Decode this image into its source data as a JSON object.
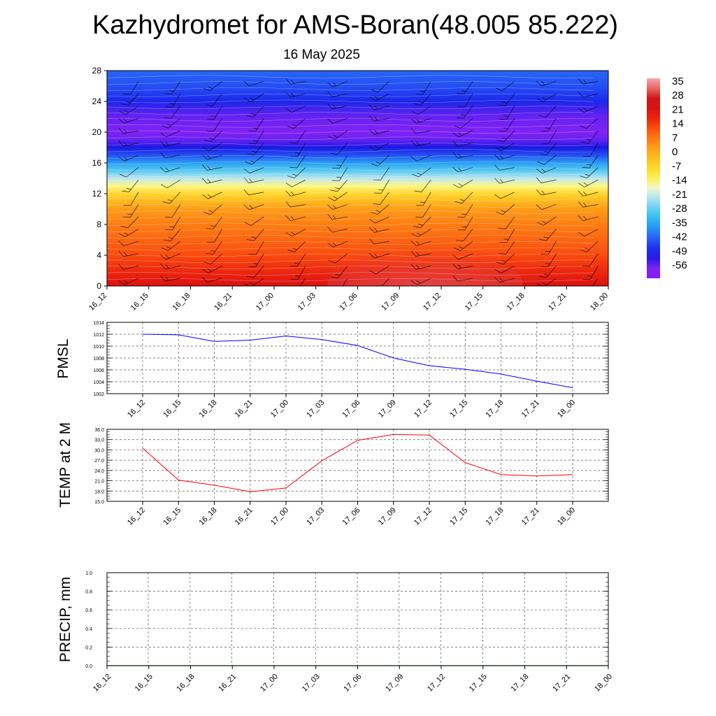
{
  "page": {
    "title": "Kazhydromet for AMS-Boran(48.005 85.222)",
    "subtitle": "16 May 2025"
  },
  "time_labels": [
    "16_12",
    "16_15",
    "16_18",
    "16_21",
    "17_00",
    "17_03",
    "17_06",
    "17_09",
    "17_12",
    "17_15",
    "17_18",
    "17_21",
    "18_00"
  ],
  "chart_data": [
    {
      "type": "heatmap",
      "title": "Kazhydromet for AMS-Boran(48.005 85.222)",
      "subtitle": "16 May 2025",
      "x": [
        "16_12",
        "16_15",
        "16_18",
        "16_21",
        "17_00",
        "17_03",
        "17_06",
        "17_09",
        "17_12",
        "17_15",
        "17_18",
        "17_21",
        "18_00"
      ],
      "ylim": [
        0,
        28
      ],
      "yticks": [
        0,
        4,
        8,
        12,
        16,
        20,
        24,
        28
      ],
      "colorbar": {
        "labels": [
          "35",
          "28",
          "21",
          "14",
          "7",
          "0",
          "-7",
          "-14",
          "-21",
          "-28",
          "-35",
          "-42",
          "-49",
          "-56"
        ],
        "range": [
          -60,
          38
        ]
      },
      "temperature_profile": {
        "levels": [
          0,
          2,
          4,
          6,
          8,
          10,
          11,
          12,
          13,
          14,
          15,
          16,
          17,
          18,
          19,
          20,
          22,
          24,
          25,
          26,
          28
        ],
        "values": [
          22,
          18,
          14,
          11,
          8,
          4,
          0,
          -6,
          -13,
          -20,
          -27,
          -34,
          -42,
          -49,
          -54,
          -56,
          -54,
          -47,
          -44,
          -42,
          -40
        ]
      },
      "surface_warm_anomaly": {
        "x": [
          "17_06",
          "17_09",
          "17_12",
          "17_15"
        ],
        "peak": "17_12",
        "max_value": 34
      },
      "wind_barbs": true
    },
    {
      "type": "line",
      "ylabel": "PMSL",
      "x": [
        "16_12",
        "16_15",
        "16_18",
        "16_21",
        "17_00",
        "17_03",
        "17_06",
        "17_09",
        "17_12",
        "17_15",
        "17_18",
        "17_21",
        "18_00"
      ],
      "series": [
        {
          "values": [
            1012.0,
            1011.9,
            1010.8,
            1011.0,
            1011.7,
            1011.1,
            1010.1,
            1008.0,
            1006.7,
            1006.1,
            1005.3,
            1004.1,
            1003.0
          ]
        }
      ],
      "ylim": [
        1002,
        1014
      ],
      "yticks": [
        "1002",
        "1004",
        "1006",
        "1008",
        "1010",
        "1012",
        "1014"
      ],
      "color": "#0000ff",
      "grid": true
    },
    {
      "type": "line",
      "ylabel": "TEMP at 2 M",
      "x": [
        "16_12",
        "16_15",
        "16_18",
        "16_21",
        "17_00",
        "17_03",
        "17_06",
        "17_09",
        "17_12",
        "17_15",
        "17_18",
        "17_21",
        "18_00"
      ],
      "series": [
        {
          "values": [
            30.5,
            21.2,
            19.7,
            17.8,
            18.9,
            26.8,
            32.8,
            34.5,
            34.3,
            26.3,
            22.8,
            22.4,
            22.8
          ]
        }
      ],
      "ylim": [
        15,
        36
      ],
      "yticks": [
        "15.0",
        "18.0",
        "21.0",
        "24.0",
        "27.0",
        "30.0",
        "33.0",
        "36.0"
      ],
      "color": "#ff0000",
      "grid": true
    },
    {
      "type": "line",
      "ylabel": "PRECIP, mm",
      "x": [
        "16_12",
        "16_15",
        "16_18",
        "16_21",
        "17_00",
        "17_03",
        "17_06",
        "17_09",
        "17_12",
        "17_15",
        "17_18",
        "17_21",
        "18_00"
      ],
      "series": [
        {
          "values": [
            0,
            0,
            0,
            0,
            0,
            0,
            0,
            0,
            0,
            0,
            0,
            0,
            0
          ]
        }
      ],
      "ylim": [
        0,
        1
      ],
      "yticks": [
        "0.0",
        "0.2",
        "0.4",
        "0.6",
        "0.8",
        "1.0"
      ],
      "color": "#008000",
      "grid": true
    }
  ]
}
